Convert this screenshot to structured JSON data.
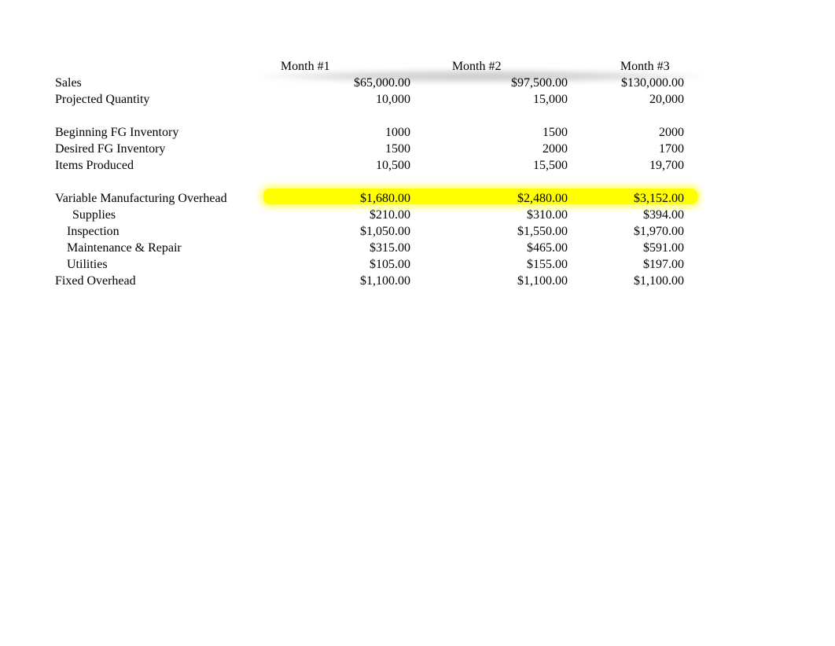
{
  "background_color": "#ffffff",
  "header_shadow_color": "rgba(180,180,180,0.6)",
  "highlight_color": "#ffff00",
  "font": {
    "family": "Times New Roman",
    "size_pt": 12,
    "color": "#000000"
  },
  "headers": {
    "m1": "Month #1",
    "m2": "Month #2",
    "m3": "Month #3"
  },
  "rows": {
    "sales": {
      "label": "Sales",
      "m1": "$65,000.00",
      "m2": "$97,500.00",
      "m3": "$130,000.00"
    },
    "projected_qty": {
      "label": "Projected Quantity",
      "m1": "10,000",
      "m2": "15,000",
      "m3": "20,000"
    },
    "begin_fg": {
      "label": "Beginning FG Inventory",
      "m1": "1000",
      "m2": "1500",
      "m3": "2000"
    },
    "desired_fg": {
      "label": "Desired FG Inventory",
      "m1": "1500",
      "m2": "2000",
      "m3": "1700"
    },
    "items_produced": {
      "label": "Items Produced",
      "m1": "10,500",
      "m2": "15,500",
      "m3": "19,700"
    },
    "var_overhead": {
      "label": "Variable Manufacturing Overhead",
      "m1": "$1,680.00",
      "m2": "$2,480.00",
      "m3": "$3,152.00"
    },
    "supplies": {
      "label": "Supplies",
      "m1": "$210.00",
      "m2": "$310.00",
      "m3": "$394.00"
    },
    "inspection": {
      "label": "Inspection",
      "m1": "$1,050.00",
      "m2": "$1,550.00",
      "m3": "$1,970.00"
    },
    "maintenance": {
      "label": "Maintenance & Repair",
      "m1": "$315.00",
      "m2": "$465.00",
      "m3": "$591.00"
    },
    "utilities": {
      "label": "Utilities",
      "m1": "$105.00",
      "m2": "$155.00",
      "m3": "$197.00"
    },
    "fixed_overhead": {
      "label": "Fixed Overhead",
      "m1": "$1,100.00",
      "m2": "$1,100.00",
      "m3": "$1,100.00"
    }
  }
}
